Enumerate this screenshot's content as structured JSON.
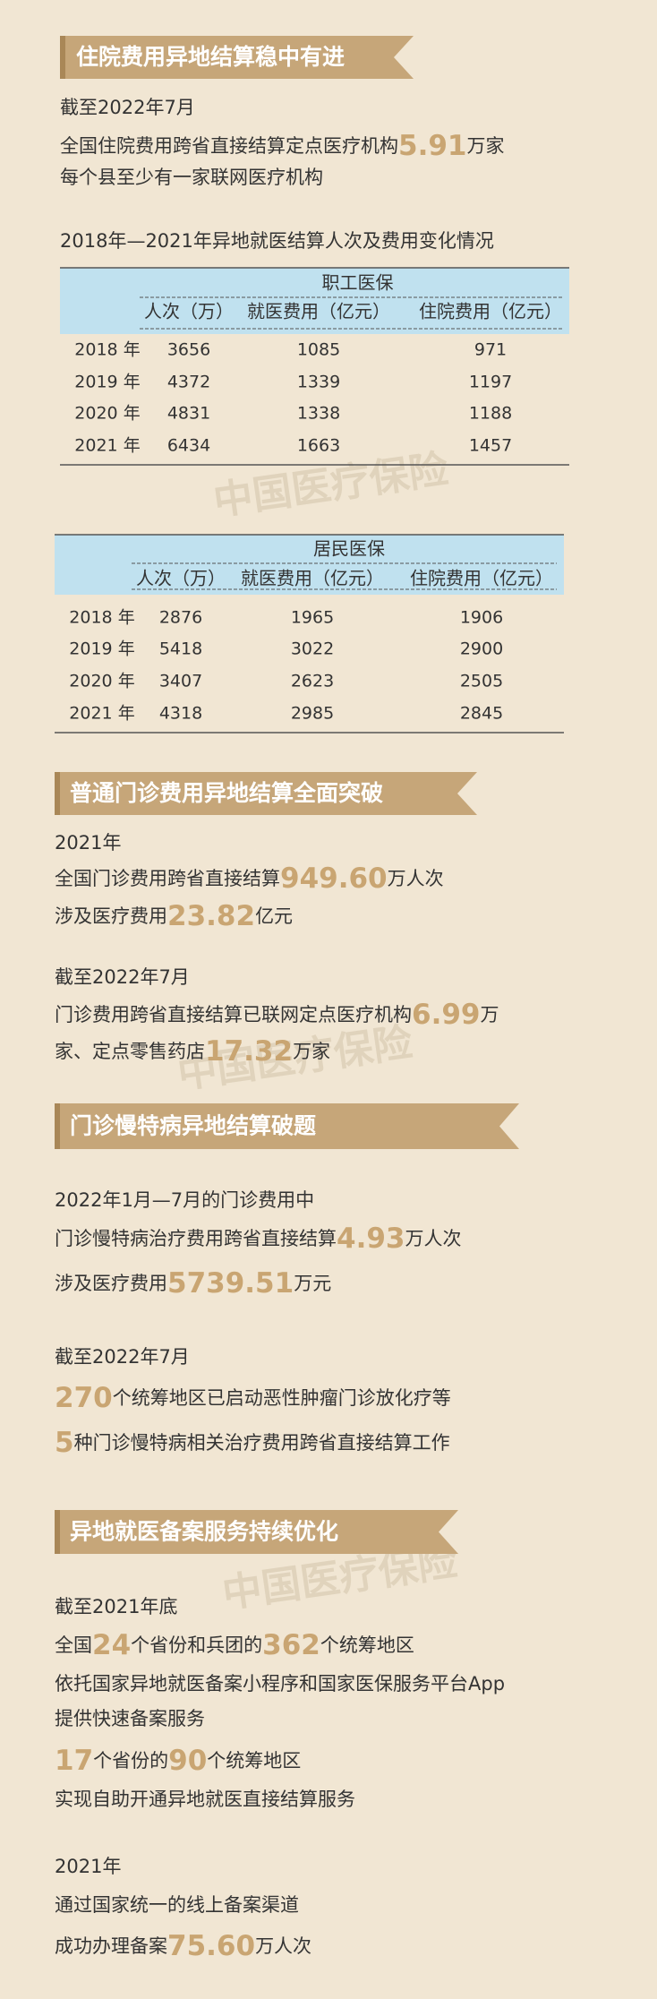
{
  "watermark": "中国医疗保险",
  "sections": [
    {
      "title": "住院费用异地结算稳中有进",
      "lines": [
        [
          "截至2022年7月"
        ],
        [
          "全国住院费用跨省直接结算定点医疗机构",
          {
            "em": "5.91"
          },
          "万家"
        ],
        [
          "每个县至少有一家联网医疗机构"
        ],
        [
          "2018年—2021年异地就医结算人次及费用变化情况"
        ]
      ]
    },
    {
      "title": "普通门诊费用异地结算全面突破",
      "lines": [
        [
          "2021年"
        ],
        [
          "全国门诊费用跨省直接结算",
          {
            "em": "949.60"
          },
          "万人次"
        ],
        [
          "涉及医疗费用",
          {
            "em": "23.82"
          },
          "亿元"
        ],
        [
          "截至2022年7月"
        ],
        [
          "门诊费用跨省直接结算已联网定点医疗机构",
          {
            "em": "6.99"
          },
          "万"
        ],
        [
          "家、定点零售药店",
          {
            "em": "17.32"
          },
          "万家"
        ]
      ]
    },
    {
      "title": "门诊慢特病异地结算破题",
      "lines": [
        [
          "2022年1月—7月的门诊费用中"
        ],
        [
          "门诊慢特病治疗费用跨省直接结算",
          {
            "em": "4.93"
          },
          "万人次"
        ],
        [
          "涉及医疗费用",
          {
            "em": "5739.51"
          },
          "万元"
        ],
        [
          "截至2022年7月"
        ],
        [
          {
            "em": "270"
          },
          "个统筹地区已启动恶性肿瘤门诊放化疗等"
        ],
        [
          {
            "em": "5"
          },
          "种门诊慢特病相关治疗费用跨省直接结算工作"
        ]
      ]
    },
    {
      "title": "异地就医备案服务持续优化",
      "lines": [
        [
          "截至2021年底"
        ],
        [
          "全国",
          {
            "em": "24"
          },
          "个省份和兵团的",
          {
            "em": "362"
          },
          "个统筹地区"
        ],
        [
          "依托国家异地就医备案小程序和国家医保服务平台App"
        ],
        [
          "提供快速备案服务"
        ],
        [
          {
            "em": "17"
          },
          "个省份的",
          {
            "em": "90"
          },
          "个统筹地区"
        ],
        [
          "实现自助开通异地就医直接结算服务"
        ],
        [
          "2021年"
        ],
        [
          "通过国家统一的线上备案渠道"
        ],
        [
          "成功办理备案",
          {
            "em": "75.60"
          },
          "万人次"
        ]
      ]
    }
  ],
  "tables": [
    {
      "title": "职工医保",
      "columns": [
        "人次（万）",
        "就医费用（亿元）",
        "住院费用（亿元）"
      ],
      "rows": [
        [
          "2018 年",
          3656,
          1085,
          971
        ],
        [
          "2019 年",
          4372,
          1339,
          1197
        ],
        [
          "2020 年",
          4831,
          1338,
          1188
        ],
        [
          "2021 年",
          6434,
          1663,
          1457
        ]
      ]
    },
    {
      "title": "居民医保",
      "columns": [
        "人次（万）",
        "就医费用（亿元）",
        "住院费用（亿元）"
      ],
      "rows": [
        [
          "2018 年",
          2876,
          1965,
          1906
        ],
        [
          "2019 年",
          5418,
          3022,
          2900
        ],
        [
          "2020 年",
          3407,
          2623,
          2505
        ],
        [
          "2021 年",
          4318,
          2985,
          2845
        ]
      ]
    }
  ]
}
